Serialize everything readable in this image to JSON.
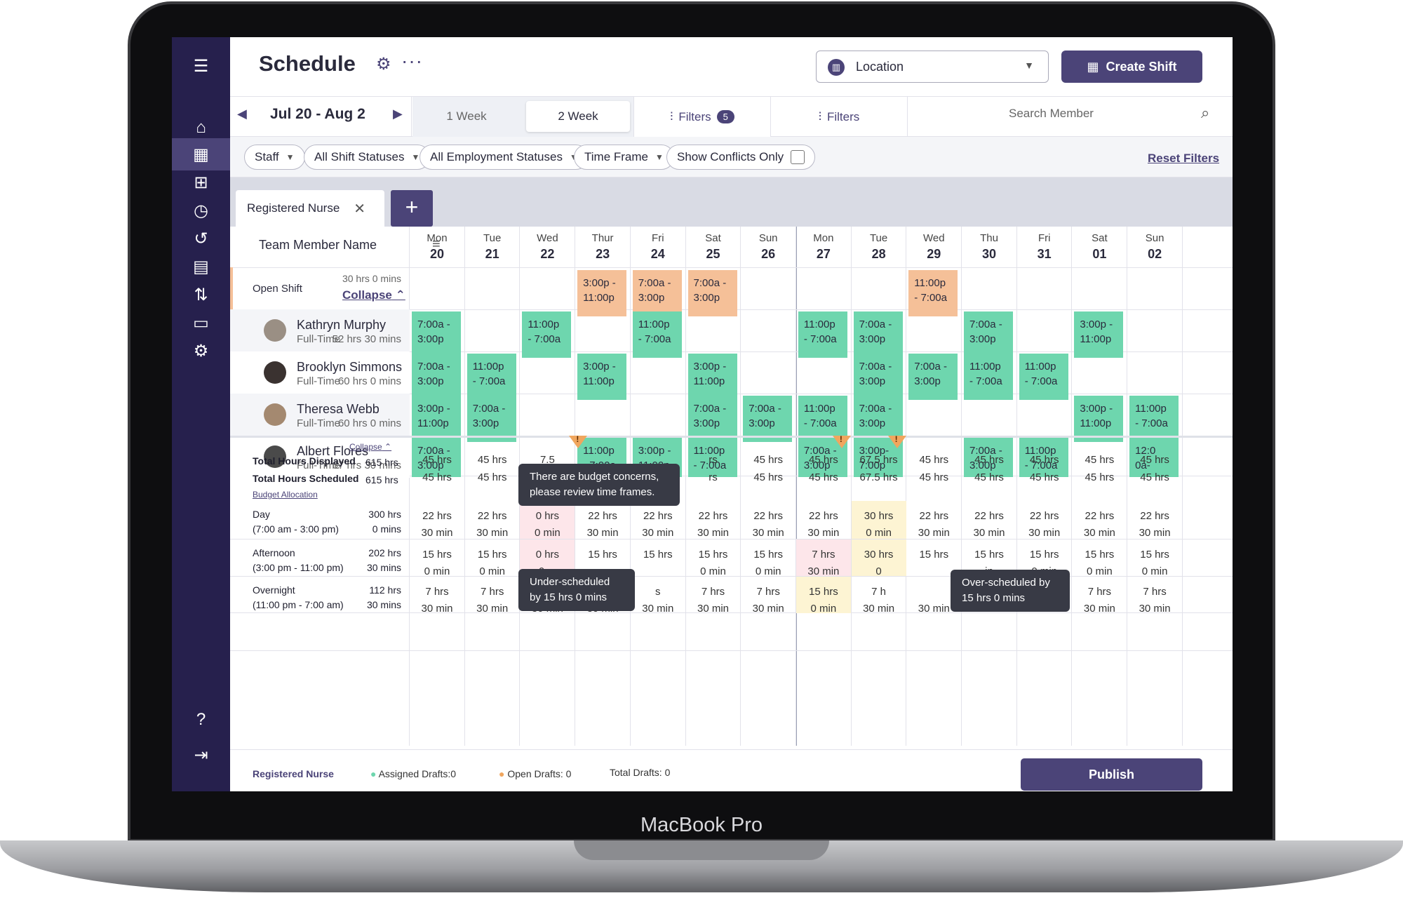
{
  "device_label": "MacBook Pro",
  "header": {
    "title": "Schedule",
    "location_label": "Location",
    "create_label": "Create Shift"
  },
  "nav": {
    "range": "Jul 20 - Aug 2",
    "week1": "1 Week",
    "week2": "2 Week",
    "filters_label": "Filters",
    "filters_count": "5",
    "filters2_label": "Filters",
    "search_placeholder": "Search Member"
  },
  "filters": {
    "staff": "Staff",
    "shift_statuses": "All Shift Statuses",
    "employment": "All Employment Statuses",
    "time_frame": "Time Frame",
    "conflicts": "Show Conflicts Only",
    "reset": "Reset Filters"
  },
  "tab": {
    "label": "Registered Nurse"
  },
  "grid": {
    "team_member_header": "Team Member Name",
    "days": [
      {
        "d": "Mon",
        "n": "20"
      },
      {
        "d": "Tue",
        "n": "21"
      },
      {
        "d": "Wed",
        "n": "22"
      },
      {
        "d": "Thur",
        "n": "23"
      },
      {
        "d": "Fri",
        "n": "24"
      },
      {
        "d": "Sat",
        "n": "25"
      },
      {
        "d": "Sun",
        "n": "26"
      },
      {
        "d": "Mon",
        "n": "27"
      },
      {
        "d": "Tue",
        "n": "28"
      },
      {
        "d": "Wed",
        "n": "29"
      },
      {
        "d": "Thu",
        "n": "30"
      },
      {
        "d": "Fri",
        "n": "31"
      },
      {
        "d": "Sat",
        "n": "01"
      },
      {
        "d": "Sun",
        "n": "02"
      }
    ]
  },
  "open_shift": {
    "name": "Open Shift",
    "hours": "30 hrs 0 mins",
    "collapse": "Collapse",
    "shifts": {
      "3": [
        "3:00p -",
        "11:00p"
      ],
      "4": [
        "7:00a -",
        "3:00p"
      ],
      "5": [
        "7:00a -",
        "3:00p"
      ],
      "9": [
        "11:00p",
        "- 7:00a"
      ]
    }
  },
  "members": [
    {
      "name": "Kathryn Murphy",
      "type": "Full-Time",
      "hours": "52 hrs 30 mins",
      "shifts": {
        "0": [
          "7:00a -",
          "3:00p"
        ],
        "2": [
          "11:00p",
          "- 7:00a"
        ],
        "4": [
          "11:00p",
          "- 7:00a"
        ],
        "7": [
          "11:00p",
          "- 7:00a"
        ],
        "8": [
          "7:00a -",
          "3:00p"
        ],
        "10": [
          "7:00a -",
          "3:00p"
        ],
        "12": [
          "3:00p -",
          "11:00p"
        ]
      }
    },
    {
      "name": "Brooklyn Simmons",
      "type": "Full-Time",
      "hours": "60 hrs 0 mins",
      "shifts": {
        "0": [
          "7:00a -",
          "3:00p"
        ],
        "1": [
          "11:00p",
          "- 7:00a"
        ],
        "3": [
          "3:00p -",
          "11:00p"
        ],
        "5": [
          "3:00p -",
          "11:00p"
        ],
        "8": [
          "7:00a -",
          "3:00p"
        ],
        "9": [
          "7:00a -",
          "3:00p"
        ],
        "10": [
          "11:00p",
          "- 7:00a"
        ],
        "11": [
          "11:00p",
          "- 7:00a"
        ]
      }
    },
    {
      "name": "Theresa Webb",
      "type": "Full-Time",
      "hours": "60 hrs 0 mins",
      "shifts": {
        "0": [
          "3:00p -",
          "11:00p"
        ],
        "1": [
          "7:00a -",
          "3:00p"
        ],
        "5": [
          "7:00a -",
          "3:00p"
        ],
        "6": [
          "7:00a -",
          "3:00p"
        ],
        "7": [
          "11:00p",
          "- 7:00a"
        ],
        "8": [
          "7:00a -",
          "3:00p"
        ],
        "12": [
          "3:00p -",
          "11:00p"
        ],
        "13": [
          "11:00p",
          "- 7:00a"
        ]
      }
    },
    {
      "name": "Albert Flores",
      "type": "Full-Time",
      "hours": "67 hrs 30 mins",
      "shifts": {
        "0": [
          "7:00a -",
          "3:00p"
        ],
        "3": [
          "11:00p",
          "- 7:00a"
        ],
        "4": [
          "3:00p -",
          "11:00p"
        ],
        "5": [
          "11:00p",
          "- 7:00a"
        ],
        "7": [
          "7:00a -",
          "3:00p"
        ],
        "8": [
          "3:00p-",
          "7:00p"
        ],
        "10": [
          "7:00a -",
          "3:00p"
        ],
        "11": [
          "11:00p",
          "- 7:00a"
        ],
        "13": [
          "12:0",
          "0a-"
        ]
      }
    }
  ],
  "totals": {
    "collapse": "Collapse",
    "displayed_label": "Total Hours Displayed",
    "displayed": "615 hrs",
    "scheduled_label": "Total Hours Scheduled",
    "scheduled": "615 hrs",
    "budget": "Budget Allocation",
    "values": [
      [
        "45 hrs",
        "45 hrs"
      ],
      [
        "45 hrs",
        "45 hrs"
      ],
      [
        "7.5",
        "7.5"
      ],
      [
        "",
        ""
      ],
      [
        "",
        ""
      ],
      [
        "rs",
        "rs"
      ],
      [
        "45 hrs",
        "45 hrs"
      ],
      [
        "45 hrs",
        "45 hrs"
      ],
      [
        "67.5 hrs",
        "67.5 hrs"
      ],
      [
        "45 hrs",
        "45 hrs"
      ],
      [
        "45 hrs",
        "45 hrs"
      ],
      [
        "45 hrs",
        "45 hrs"
      ],
      [
        "45 hrs",
        "45 hrs"
      ],
      [
        "45 hrs",
        "45 hrs"
      ]
    ]
  },
  "coverage": [
    {
      "label": "Day",
      "sub": "(7:00 am - 3:00 pm)",
      "h1": "300 hrs",
      "h2": "0 mins",
      "cells": [
        [
          "22 hrs",
          "30 min"
        ],
        [
          "22 hrs",
          "30 min"
        ],
        [
          "0 hrs",
          "0 min"
        ],
        [
          "22 hrs",
          "30 min"
        ],
        [
          "22 hrs",
          "30 min"
        ],
        [
          "22 hrs",
          "30 min"
        ],
        [
          "22 hrs",
          "30 min"
        ],
        [
          "22 hrs",
          "30 min"
        ],
        [
          "30 hrs",
          "0 min"
        ],
        [
          "22 hrs",
          "30 min"
        ],
        [
          "22 hrs",
          "30 min"
        ],
        [
          "22 hrs",
          "30 min"
        ],
        [
          "22 hrs",
          "30 min"
        ],
        [
          "22 hrs",
          "30 min"
        ]
      ]
    },
    {
      "label": "Afternoon",
      "sub": "(3:00 pm - 11:00 pm)",
      "h1": "202 hrs",
      "h2": "30 mins",
      "cells": [
        [
          "15 hrs",
          "0 min"
        ],
        [
          "15 hrs",
          "0 min"
        ],
        [
          "0 hrs",
          "0 m"
        ],
        [
          "15 hrs",
          ""
        ],
        [
          "15 hrs",
          ""
        ],
        [
          "15 hrs",
          "0 min"
        ],
        [
          "15 hrs",
          "0 min"
        ],
        [
          "7 hrs",
          "30 min"
        ],
        [
          "30 hrs",
          "0"
        ],
        [
          "15 hrs",
          ""
        ],
        [
          "15 hrs",
          "in"
        ],
        [
          "15 hrs",
          "0 min"
        ],
        [
          "15 hrs",
          "0 min"
        ],
        [
          "15 hrs",
          "0 min"
        ]
      ]
    },
    {
      "label": "Overnight",
      "sub": "(11:00 pm - 7:00 am)",
      "h1": "112 hrs",
      "h2": "30 mins",
      "cells": [
        [
          "7 hrs",
          "30 min"
        ],
        [
          "7 hrs",
          "30 min"
        ],
        [
          "7 h",
          "30 min"
        ],
        [
          "",
          "30 min"
        ],
        [
          "s",
          "30 min"
        ],
        [
          "7 hrs",
          "30 min"
        ],
        [
          "7 hrs",
          "30 min"
        ],
        [
          "15 hrs",
          "0 min"
        ],
        [
          "7 h",
          "30 min"
        ],
        [
          "",
          "30 min"
        ],
        [
          "s",
          "30 min"
        ],
        [
          "7 hrs",
          "30 min"
        ],
        [
          "7 hrs",
          "30 min"
        ],
        [
          "7 hrs",
          "30 min"
        ]
      ]
    }
  ],
  "tooltips": {
    "budget": "There are budget concerns, please review time frames.",
    "under": "Under-scheduled by 15 hrs 0 mins",
    "over": "Over-scheduled by 15 hrs 0 mins"
  },
  "footer": {
    "role": "Registered Nurse",
    "assigned": "Assigned Drafts:0",
    "open": "Open Drafts: 0",
    "total": "Total Drafts: 0",
    "publish": "Publish"
  },
  "colors": {
    "sidebar": "#26204d",
    "accent": "#4b4478",
    "green": "#6ed6ae",
    "orange": "#f5c098"
  }
}
